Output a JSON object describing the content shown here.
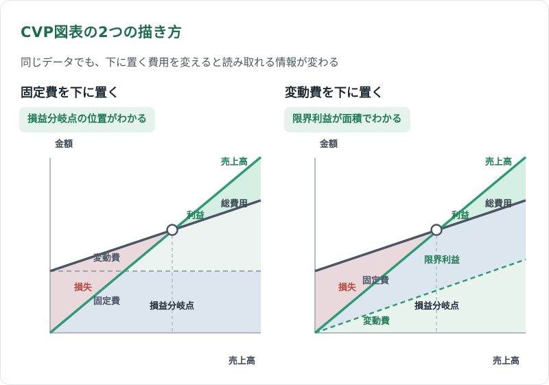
{
  "header": {
    "title": "CVP図表の2つの描き方",
    "subtitle": "同じデータでも、下に置く費用を変えると読み取れる情報が変わる"
  },
  "left_panel": {
    "heading": "固定費を下に置く",
    "badge": "損益分岐点の位置がわかる",
    "y_axis_label": "金額",
    "x_axis_label": "売上高",
    "labels": {
      "sales_line": "売上高",
      "total_cost": "総費用",
      "profit": "利益",
      "variable_cost": "変動費",
      "loss": "損失",
      "fixed_cost": "固定費",
      "breakeven": "損益分岐点"
    }
  },
  "right_panel": {
    "heading": "変動費を下に置く",
    "badge": "限界利益が面積でわかる",
    "y_axis_label": "金額",
    "x_axis_label": "売上高",
    "labels": {
      "sales_line": "売上高",
      "total_cost": "総費用",
      "profit": "利益",
      "contribution_margin": "限界利益",
      "loss": "損失",
      "fixed_cost": "固定費",
      "breakeven": "損益分岐点",
      "variable_cost": "変動費"
    }
  },
  "colors": {
    "title": "#1f6b4f",
    "sales": "#2f9b76",
    "cost": "#4a5666",
    "loss_text": "#b8473e",
    "profit_text": "#1f7a55",
    "badge_bg": "#e5f3ec"
  }
}
